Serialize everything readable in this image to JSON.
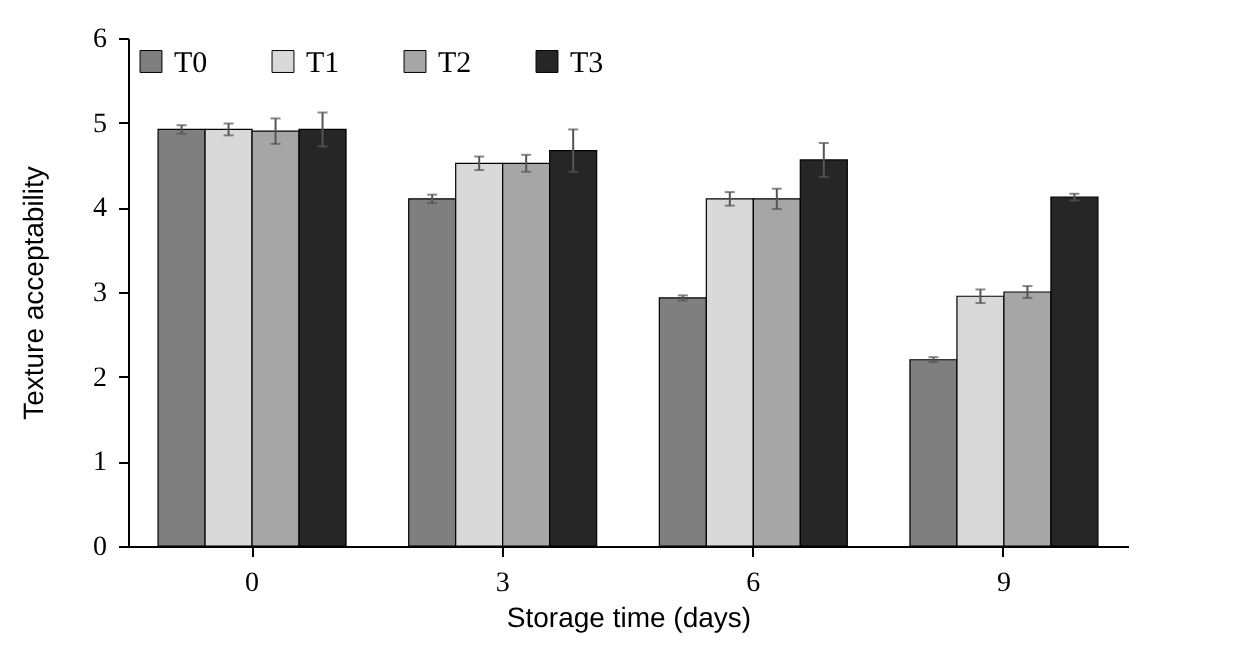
{
  "chart_data": {
    "type": "bar",
    "xlabel": "Storage time (days)",
    "ylabel": "Texture acceptability",
    "categories": [
      "0",
      "3",
      "6",
      "9"
    ],
    "series": [
      {
        "name": "T0",
        "color": "#7f7f7f",
        "values": [
          4.92,
          4.1,
          2.93,
          2.2
        ],
        "errors": [
          0.05,
          0.05,
          0.03,
          0.03
        ]
      },
      {
        "name": "T1",
        "color": "#d9d9d9",
        "values": [
          4.92,
          4.52,
          4.1,
          2.95
        ],
        "errors": [
          0.07,
          0.08,
          0.08,
          0.08
        ]
      },
      {
        "name": "T2",
        "color": "#a6a6a6",
        "values": [
          4.9,
          4.52,
          4.1,
          3.0
        ],
        "errors": [
          0.15,
          0.1,
          0.12,
          0.07
        ]
      },
      {
        "name": "T3",
        "color": "#262626",
        "values": [
          4.92,
          4.67,
          4.56,
          4.12
        ],
        "errors": [
          0.2,
          0.25,
          0.2,
          0.04
        ]
      }
    ],
    "ylim": [
      0,
      6
    ],
    "yticks": [
      0,
      1,
      2,
      3,
      4,
      5,
      6
    ],
    "legend": "top left"
  }
}
